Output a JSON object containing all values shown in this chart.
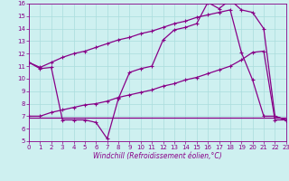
{
  "xlabel": "Windchill (Refroidissement éolien,°C)",
  "background_color": "#cef0f0",
  "grid_color": "#aadddd",
  "line_color": "#880088",
  "spine_color": "#7700aa",
  "xlim": [
    0,
    23
  ],
  "ylim": [
    5,
    16
  ],
  "xticks": [
    0,
    1,
    2,
    3,
    4,
    5,
    6,
    7,
    8,
    9,
    10,
    11,
    12,
    13,
    14,
    15,
    16,
    17,
    18,
    19,
    20,
    21,
    22,
    23
  ],
  "yticks": [
    5,
    6,
    7,
    8,
    9,
    10,
    11,
    12,
    13,
    14,
    15,
    16
  ],
  "line1_x": [
    0,
    1,
    2,
    3,
    4,
    5,
    6,
    7,
    8,
    9,
    10,
    11,
    12,
    13,
    14,
    15,
    16,
    17,
    18,
    19,
    20,
    21,
    22,
    23
  ],
  "line1_y": [
    6.9,
    6.9,
    6.9,
    6.9,
    6.9,
    6.9,
    6.9,
    6.9,
    6.9,
    6.9,
    6.9,
    6.9,
    6.9,
    6.9,
    6.9,
    6.9,
    6.9,
    6.9,
    6.9,
    6.9,
    6.9,
    6.9,
    6.9,
    6.9
  ],
  "line2_x": [
    0,
    1,
    2,
    3,
    4,
    5,
    6,
    7,
    8,
    9,
    10,
    11,
    12,
    13,
    14,
    15,
    16,
    17,
    18,
    19,
    20,
    21,
    22,
    23
  ],
  "line2_y": [
    7.0,
    7.0,
    7.3,
    7.5,
    7.7,
    7.9,
    8.0,
    8.2,
    8.5,
    8.7,
    8.9,
    9.1,
    9.4,
    9.6,
    9.9,
    10.1,
    10.4,
    10.7,
    11.0,
    11.5,
    12.1,
    12.2,
    6.7,
    6.7
  ],
  "line3_x": [
    0,
    1,
    2,
    3,
    4,
    5,
    6,
    7,
    8,
    9,
    10,
    11,
    12,
    13,
    14,
    15,
    16,
    17,
    18,
    19,
    20,
    21,
    22,
    23
  ],
  "line3_y": [
    11.3,
    10.8,
    10.9,
    6.7,
    6.7,
    6.7,
    6.5,
    5.2,
    8.4,
    10.5,
    10.8,
    11.0,
    13.1,
    13.9,
    14.1,
    14.4,
    16.1,
    15.6,
    16.3,
    15.5,
    15.3,
    14.0,
    7.0,
    6.7
  ],
  "line4_x": [
    0,
    1,
    2,
    3,
    4,
    5,
    6,
    7,
    8,
    9,
    10,
    11,
    12,
    13,
    14,
    15,
    16,
    17,
    18,
    19,
    20,
    21,
    22,
    23
  ],
  "line4_y": [
    11.3,
    10.9,
    11.3,
    11.7,
    12.0,
    12.2,
    12.5,
    12.8,
    13.1,
    13.3,
    13.6,
    13.8,
    14.1,
    14.4,
    14.6,
    14.9,
    15.1,
    15.3,
    15.5,
    12.1,
    9.9,
    7.0,
    7.0,
    6.7
  ],
  "tick_fontsize": 5,
  "xlabel_fontsize": 5.5
}
